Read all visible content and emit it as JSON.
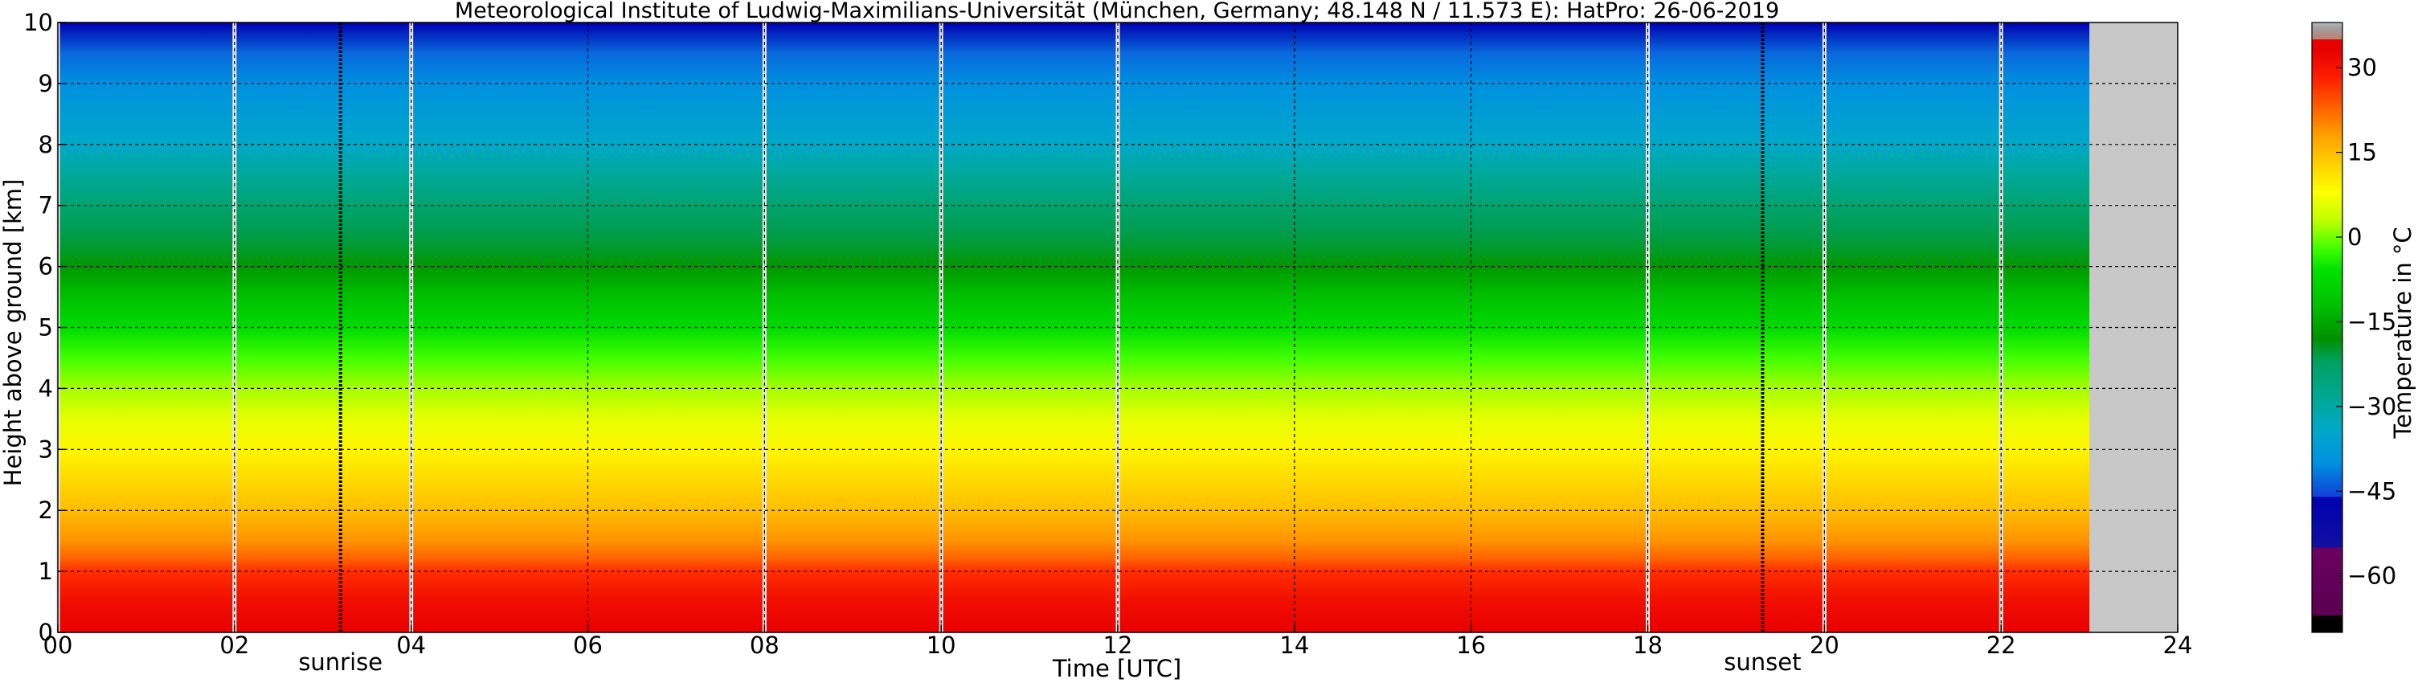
{
  "chart_data": {
    "type": "heatmap",
    "title": "Meteorological Institute of Ludwig-Maximilians-Universität (München, Germany; 48.148 N / 11.573 E):    HatPro: 26-06-2019",
    "xlabel": "Time [UTC]",
    "ylabel": "Height above ground [km]",
    "xlim": [
      0,
      24
    ],
    "ylim": [
      0,
      10
    ],
    "x_ticks": [
      0,
      2,
      4,
      6,
      8,
      10,
      12,
      14,
      16,
      18,
      20,
      22,
      24
    ],
    "x_tick_labels": [
      "00",
      "02",
      "04",
      "06",
      "08",
      "10",
      "12",
      "14",
      "16",
      "18",
      "20",
      "22",
      "24"
    ],
    "y_ticks": [
      0,
      1,
      2,
      3,
      4,
      5,
      6,
      7,
      8,
      9,
      10
    ],
    "y_tick_labels": [
      "0",
      "1",
      "2",
      "3",
      "4",
      "5",
      "6",
      "7",
      "8",
      "9",
      "10"
    ],
    "grid": true,
    "data_end_time": 23.0,
    "data_gaps": [
      0.0,
      2.0,
      4.0,
      8.0,
      10.0,
      12.0,
      18.0,
      20.0,
      22.0
    ],
    "annotations": [
      {
        "label": "sunrise",
        "time": 3.2
      },
      {
        "label": "sunset",
        "time": 19.3
      }
    ],
    "temperature_profile": {
      "heights_km": [
        0.0,
        0.5,
        1.0,
        1.2,
        1.5,
        2.0,
        2.5,
        3.0,
        3.5,
        4.0,
        4.5,
        5.0,
        5.5,
        6.0,
        6.5,
        7.0,
        7.5,
        8.0,
        8.5,
        9.0,
        9.5,
        10.0
      ],
      "temperature_c": [
        33,
        31,
        27,
        23,
        19,
        15,
        12,
        9,
        6,
        2,
        -2,
        -7,
        -12,
        -17,
        -21,
        -24,
        -29,
        -34,
        -37,
        -40,
        -43,
        -46
      ]
    },
    "colorbar": {
      "label": "Temperature in °C",
      "range": [
        -70,
        38
      ],
      "ticks": [
        30,
        15,
        0,
        -15,
        -30,
        -45,
        -60
      ],
      "tick_labels": [
        "30",
        "15",
        "0",
        "−15",
        "−30",
        "−45",
        "−60"
      ],
      "stops": [
        {
          "value": -70,
          "color": "#000000"
        },
        {
          "value": -67,
          "color": "#000000"
        },
        {
          "value": -67,
          "color": "#5a0050"
        },
        {
          "value": -55,
          "color": "#6a0060"
        },
        {
          "value": -55,
          "color": "#1010a0"
        },
        {
          "value": -46,
          "color": "#0000b0"
        },
        {
          "value": -46,
          "color": "#1040d8"
        },
        {
          "value": -40,
          "color": "#0090e0"
        },
        {
          "value": -34,
          "color": "#00a8c8"
        },
        {
          "value": -28,
          "color": "#00a890"
        },
        {
          "value": -22,
          "color": "#00a060"
        },
        {
          "value": -18,
          "color": "#009000"
        },
        {
          "value": -12,
          "color": "#00c000"
        },
        {
          "value": -6,
          "color": "#00e000"
        },
        {
          "value": -2,
          "color": "#40ff00"
        },
        {
          "value": 3,
          "color": "#c0ff00"
        },
        {
          "value": 8,
          "color": "#ffff00"
        },
        {
          "value": 13,
          "color": "#ffd000"
        },
        {
          "value": 18,
          "color": "#ffa000"
        },
        {
          "value": 23,
          "color": "#ff6000"
        },
        {
          "value": 28,
          "color": "#ff2000"
        },
        {
          "value": 33,
          "color": "#e80000"
        },
        {
          "value": 35,
          "color": "#e80000"
        },
        {
          "value": 35,
          "color": "#c08070"
        },
        {
          "value": 37,
          "color": "#a0a0a0"
        },
        {
          "value": 38,
          "color": "#b8b8b8"
        }
      ]
    }
  }
}
